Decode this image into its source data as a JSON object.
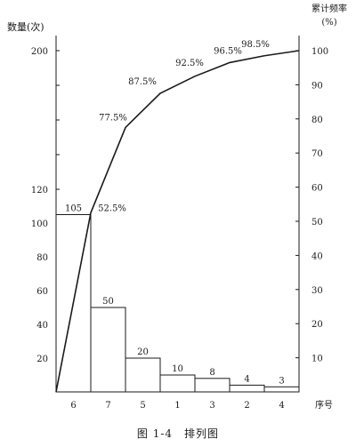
{
  "caption": "图 1-4　排列图",
  "chart_data": {
    "type": "bar",
    "title": "",
    "categories": [
      "6",
      "7",
      "5",
      "1",
      "3",
      "2",
      "4"
    ],
    "xlabel": "序号",
    "y_left_label": "数量(次)",
    "y_right_label_line1": "累计频率",
    "y_right_label_line2": "(%)",
    "series": [
      {
        "values": [
          105,
          50,
          20,
          10,
          8,
          4,
          3
        ]
      },
      {
        "values": [
          52.5,
          77.5,
          87.5,
          92.5,
          96.5,
          98.5,
          100
        ]
      }
    ],
    "bar_labels": [
      "105",
      "50",
      "20",
      "10",
      "8",
      "4",
      "3"
    ],
    "cum_labels": [
      "52.5%",
      "77.5%",
      "87.5%",
      "92.5%",
      "96.5%",
      "98.5%"
    ],
    "left_axis": {
      "ylim": [
        0,
        200
      ],
      "tick_labels": [
        "20",
        "40",
        "60",
        "80",
        "100",
        "120",
        "200"
      ]
    },
    "right_axis": {
      "ylim": [
        0,
        100
      ],
      "tick_labels": [
        "10",
        "20",
        "30",
        "40",
        "50",
        "60",
        "70",
        "80",
        "90",
        "100"
      ]
    },
    "grid": false,
    "legend": "none"
  }
}
